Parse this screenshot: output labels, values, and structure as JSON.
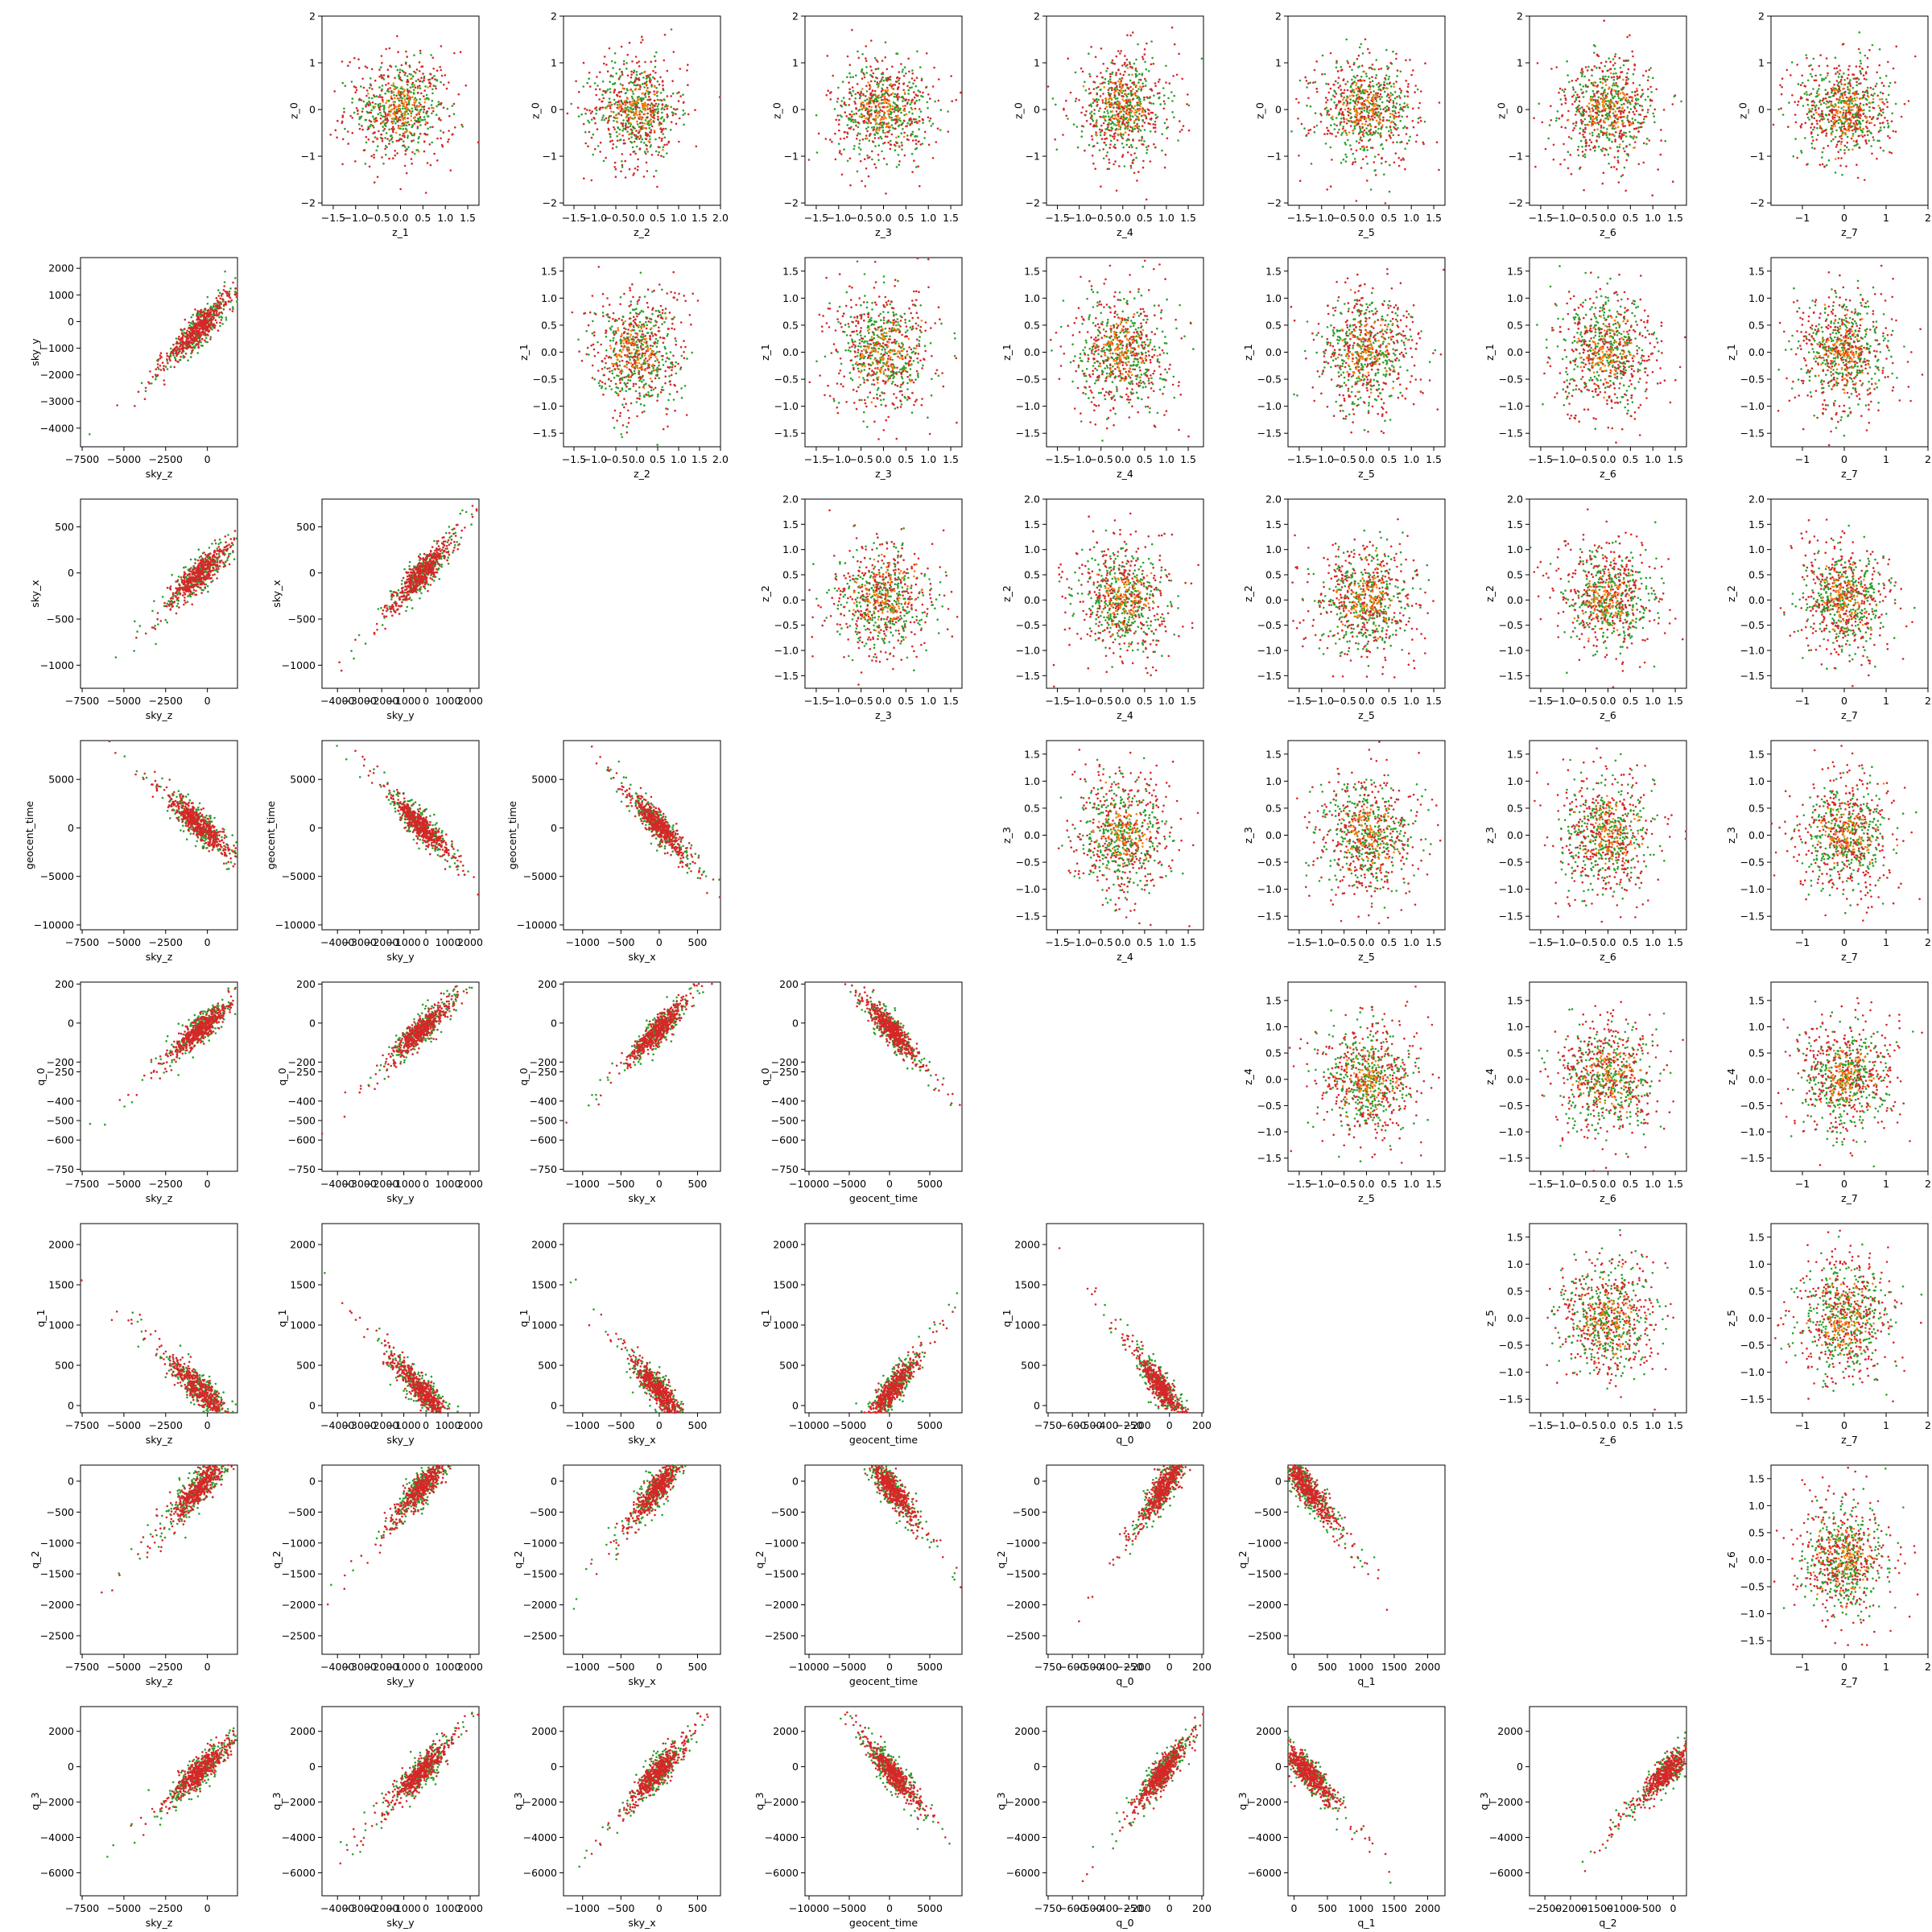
{
  "variables": [
    {
      "name": "z_0",
      "ticks": [
        -2,
        -1,
        0,
        1,
        2
      ]
    },
    {
      "name": "z_1",
      "ticks": [
        -1.5,
        -1.0,
        -0.5,
        0.0,
        0.5,
        1.0,
        1.5
      ]
    },
    {
      "name": "z_2",
      "ticks": [
        -1.5,
        -1.0,
        -0.5,
        0.0,
        0.5,
        1.0,
        1.5,
        2.0
      ]
    },
    {
      "name": "z_3",
      "ticks": [
        -1.5,
        -1.0,
        -0.5,
        0.0,
        0.5,
        1.0,
        1.5
      ]
    },
    {
      "name": "z_4",
      "ticks": [
        -1.5,
        -1.0,
        -0.5,
        0.0,
        0.5,
        1.0,
        1.5
      ]
    },
    {
      "name": "z_5",
      "ticks": [
        -1.5,
        -1.0,
        -0.5,
        0.0,
        0.5,
        1.0,
        1.5
      ]
    },
    {
      "name": "z_6",
      "ticks": [
        -1.5,
        -1.0,
        -0.5,
        0.0,
        0.5,
        1.0,
        1.5
      ]
    },
    {
      "name": "z_7",
      "ticks": [
        -1,
        0,
        1,
        2
      ]
    },
    {
      "name": "sky_z",
      "ticks": [
        -7500,
        -5000,
        -2500,
        0
      ]
    },
    {
      "name": "sky_y",
      "ticks": [
        -4000,
        -3000,
        -2000,
        -1000,
        0,
        1000,
        2000
      ]
    },
    {
      "name": "sky_x",
      "ticks": [
        -1000,
        -500,
        0,
        500
      ]
    },
    {
      "name": "geocent_time",
      "ticks": [
        -10000,
        -5000,
        0,
        5000
      ]
    },
    {
      "name": "q_0",
      "ticks": [
        -750,
        -600,
        -500,
        -400,
        -250,
        -200,
        0,
        200
      ]
    },
    {
      "name": "q_1",
      "ticks": [
        0,
        500,
        1000,
        1500,
        2000
      ]
    },
    {
      "name": "q_2",
      "ticks": [
        -2500,
        -2000,
        -1500,
        -1000,
        -500,
        0
      ]
    },
    {
      "name": "q_3",
      "ticks": [
        -6000,
        -4000,
        -2000,
        0,
        2000
      ]
    }
  ],
  "chart_data": {
    "type": "scatter",
    "grid": false,
    "legend": "none",
    "series_colors": [
      "#2ca02c",
      "#d62728",
      "#ff7f0e"
    ],
    "upper_triangle": {
      "description_x_vars": [
        "z_1",
        "z_2",
        "z_3",
        "z_4",
        "z_5",
        "z_6",
        "z_7"
      ],
      "y_vars": [
        "z_0",
        "z_1",
        "z_2",
        "z_3",
        "z_4",
        "z_5",
        "z_6"
      ],
      "ranges": {
        "z_0": [
          -2.05,
          2.0
        ],
        "z_1": [
          -1.75,
          1.75
        ],
        "z_2": [
          -1.75,
          2.0
        ],
        "z_3": [
          -1.75,
          1.75
        ],
        "z_4": [
          -1.75,
          1.85
        ],
        "z_5": [
          -1.75,
          1.75
        ],
        "z_6": [
          -1.75,
          1.75
        ],
        "z_7": [
          -1.75,
          2.0
        ]
      },
      "distribution": "isotropic gaussian blob, std ~0.55, centered at 0"
    },
    "lower_triangle": {
      "x_vars": [
        "sky_z",
        "sky_y",
        "sky_x",
        "geocent_time",
        "q_0",
        "q_1",
        "q_2"
      ],
      "y_vars": [
        "sky_y",
        "sky_x",
        "geocent_time",
        "q_0",
        "q_1",
        "q_2",
        "q_3"
      ],
      "ranges": {
        "sky_z": [
          -7600,
          1800
        ],
        "sky_y": [
          -4700,
          2400
        ],
        "sky_x": [
          -1250,
          800
        ],
        "geocent_time": [
          -10500,
          9000
        ],
        "q_0": [
          -760,
          210
        ],
        "q_1": [
          -90,
          2260
        ],
        "q_2": [
          -2800,
          260
        ],
        "q_3": [
          -7300,
          3400
        ]
      },
      "latent_trends": {
        "sky_z": {
          "mean": -500,
          "scale": 1400,
          "sign": 1
        },
        "sky_y": {
          "mean": -250,
          "scale": 950,
          "sign": 1
        },
        "sky_x": {
          "mean": -20,
          "scale": 260,
          "sign": 1
        },
        "geocent_time": {
          "mean": 300,
          "scale": 2300,
          "sign": -1
        },
        "q_0": {
          "mean": -40,
          "scale": 110,
          "sign": 1
        },
        "q_1": {
          "mean": 200,
          "scale": 300,
          "sign": -1
        },
        "q_2": {
          "mean": -120,
          "scale": 420,
          "sign": 1
        },
        "q_3": {
          "mean": -300,
          "scale": 1300,
          "sign": 1
        }
      }
    }
  }
}
